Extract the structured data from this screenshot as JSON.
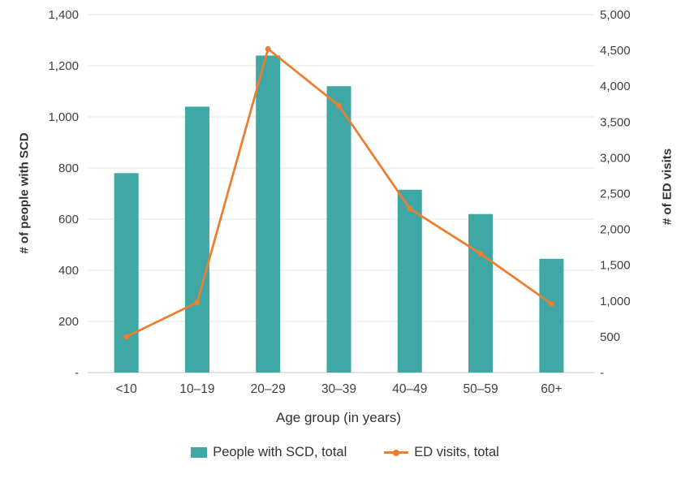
{
  "chart_data": {
    "type": "combo-bar-line",
    "title": "",
    "categories": [
      "<10",
      "10–19",
      "20–29",
      "30–39",
      "40–49",
      "50–59",
      "60+"
    ],
    "series": [
      {
        "name": "People with SCD, total",
        "type": "bar",
        "axis": "left",
        "color": "#3fa8a4",
        "values": [
          780,
          1040,
          1240,
          1120,
          715,
          620,
          445
        ]
      },
      {
        "name": "ED visits, total",
        "type": "line",
        "axis": "right",
        "color": "#ed7d31",
        "values": [
          500,
          980,
          4520,
          3730,
          2290,
          1660,
          960
        ]
      }
    ],
    "left_axis": {
      "label": "# of people with SCD",
      "min": 0,
      "max": 1400,
      "step": 200,
      "tick_labels": [
        "-",
        "200",
        "400",
        "600",
        "800",
        "1,000",
        "1,200",
        "1,400"
      ]
    },
    "right_axis": {
      "label": "# of ED visits",
      "min": 0,
      "max": 5000,
      "step": 500,
      "tick_labels": [
        "-",
        "500",
        "1,000",
        "1,500",
        "2,000",
        "2,500",
        "3,000",
        "3,500",
        "4,000",
        "4,500",
        "5,000"
      ]
    },
    "x_axis": {
      "label": "Age group (in years)"
    },
    "legend": {
      "position": "bottom",
      "items": [
        "People with SCD, total",
        "ED visits, total"
      ]
    },
    "grid": true,
    "colors": {
      "bar": "#3fa8a4",
      "line": "#ed7d31",
      "grid": "#e4e4e4",
      "baseline": "#c9c9c9",
      "text": "#404040"
    }
  }
}
